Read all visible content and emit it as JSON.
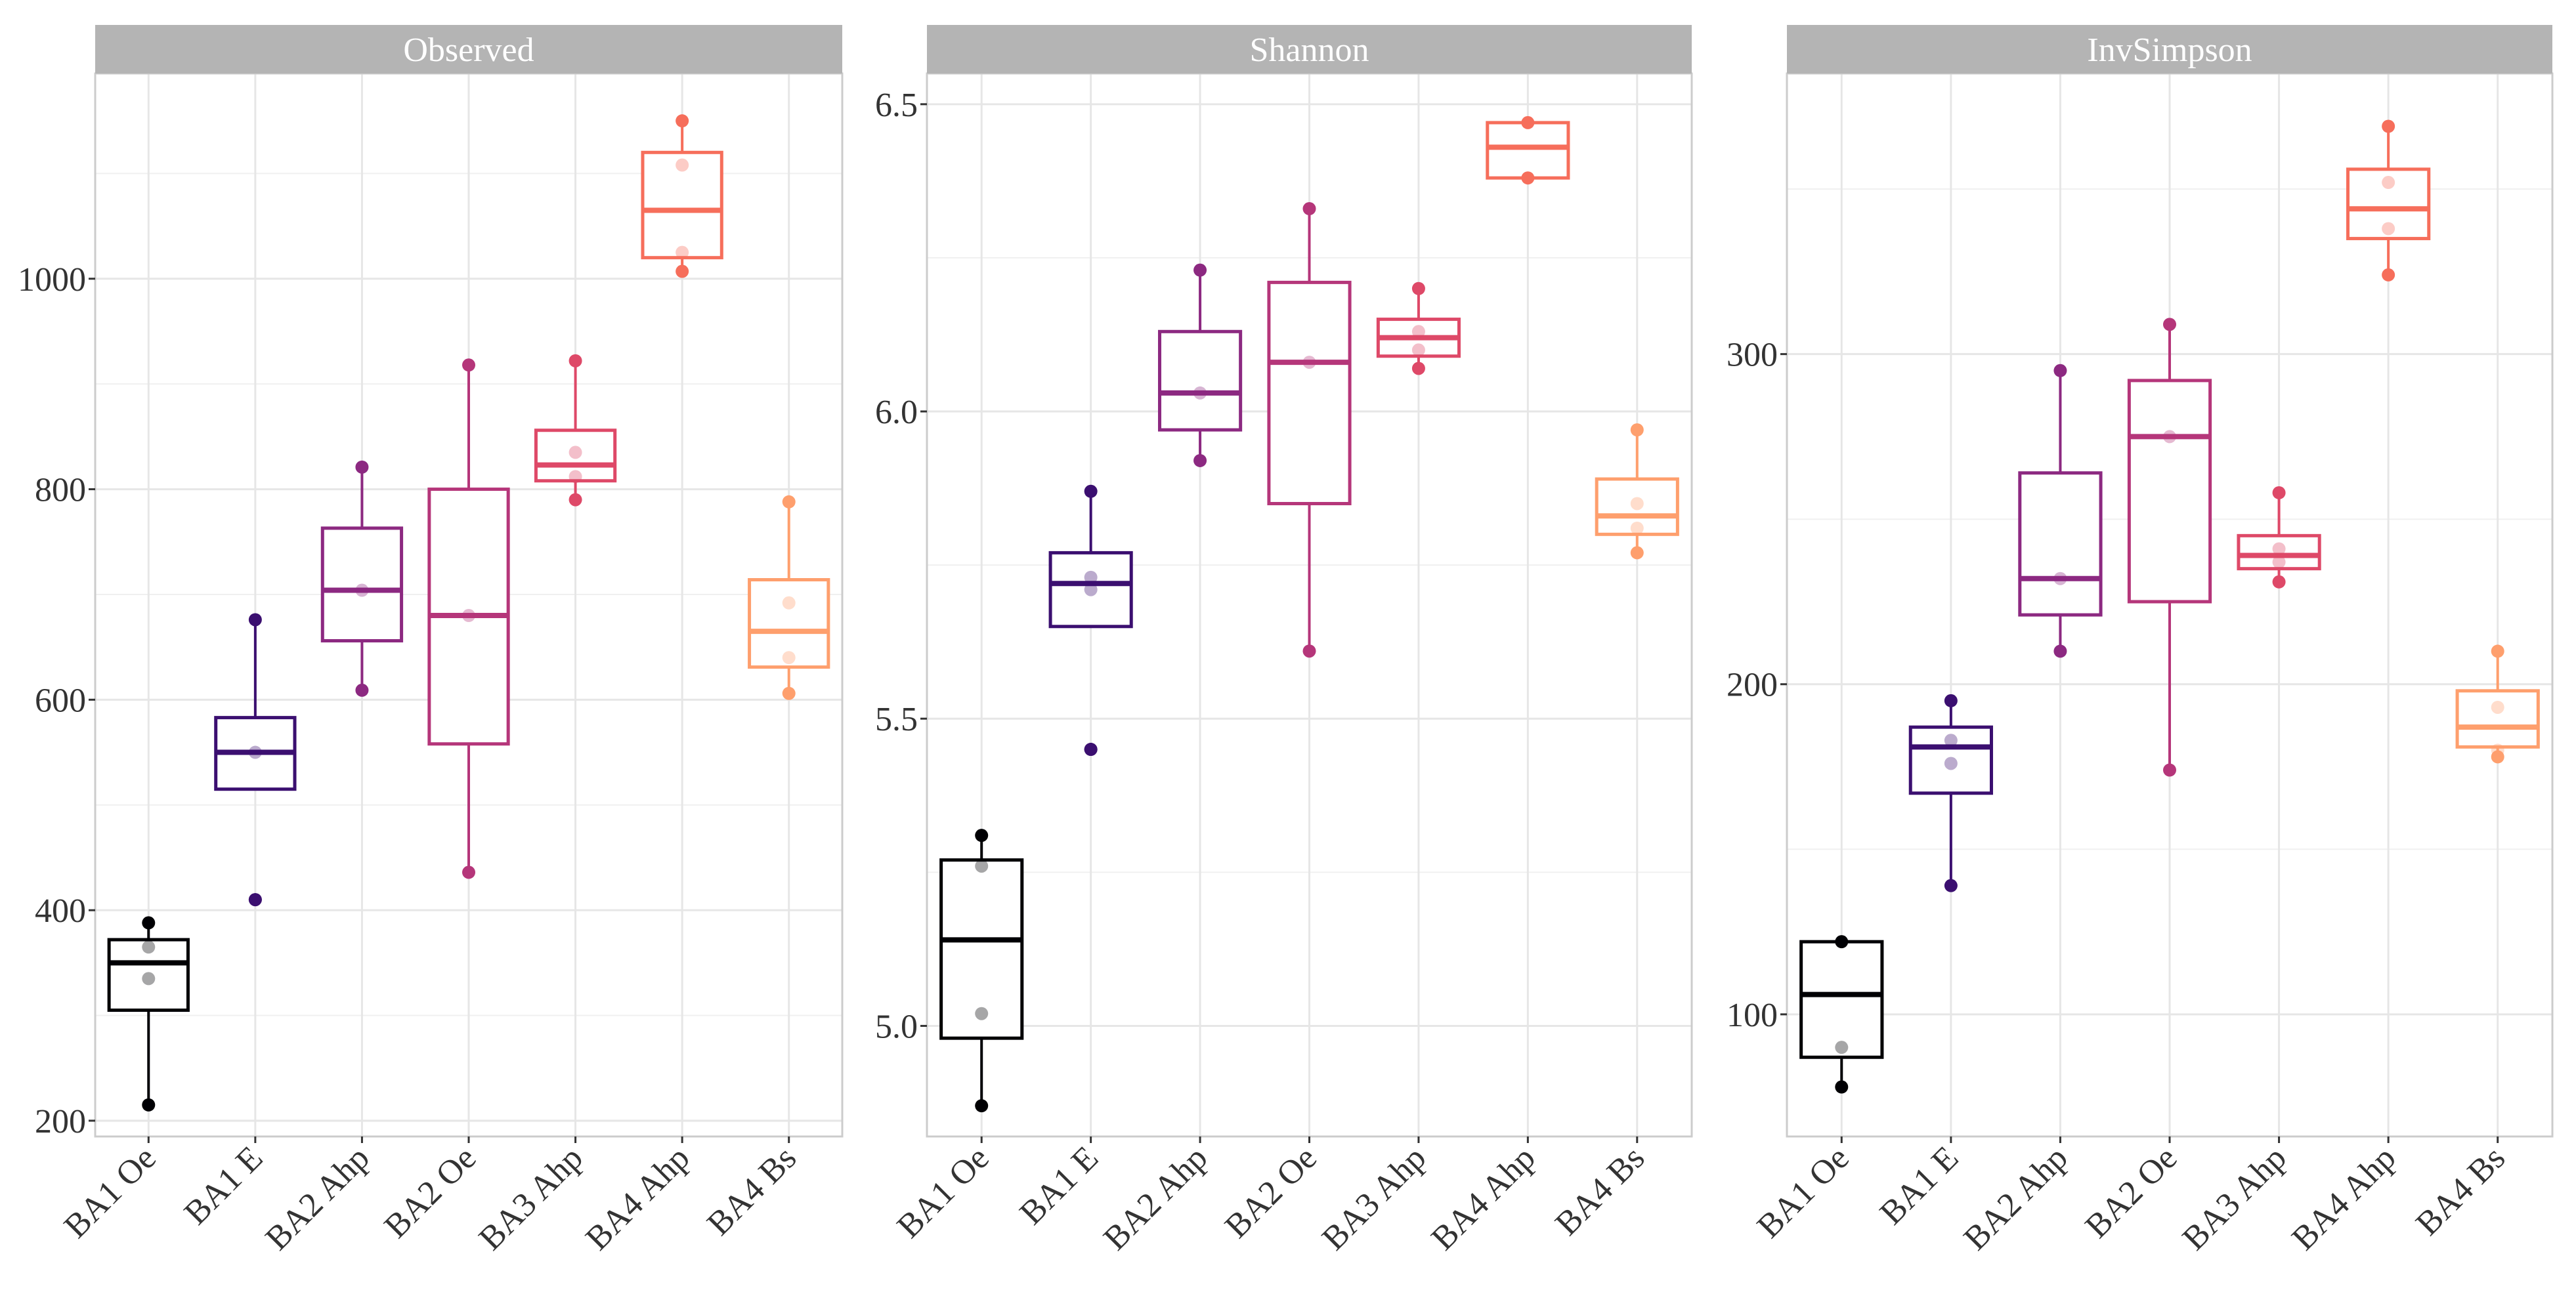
{
  "chart_data": [
    {
      "type": "box",
      "title": "Observed",
      "categories": [
        "BA1 Oe",
        "BA1 E",
        "BA2 Ahp",
        "BA2 Oe",
        "BA3 Ahp",
        "BA4 Ahp",
        "BA4 Bs"
      ],
      "ylim": [
        185,
        1195
      ],
      "yticks": [
        200,
        400,
        600,
        800,
        1000
      ],
      "ytick_labels": [
        "200",
        "400",
        "600",
        "800",
        "1000"
      ],
      "minor_gridlines": [
        300,
        500,
        700,
        900,
        1100
      ],
      "grid": true,
      "boxes": [
        {
          "q1": 305,
          "median": 350,
          "q3": 372,
          "lower_whisker": 215,
          "upper_whisker": 388,
          "points": [
            215,
            335,
            365,
            388
          ]
        },
        {
          "q1": 515,
          "median": 550,
          "q3": 583,
          "lower_whisker": 515,
          "upper_whisker": 676,
          "outliers": [
            410
          ],
          "points": [
            410,
            550,
            676
          ]
        },
        {
          "q1": 656,
          "median": 704,
          "q3": 763,
          "lower_whisker": 609,
          "upper_whisker": 821,
          "points": [
            609,
            704,
            821
          ]
        },
        {
          "q1": 558,
          "median": 680,
          "q3": 800,
          "lower_whisker": 436,
          "upper_whisker": 918,
          "points": [
            436,
            680,
            918
          ]
        },
        {
          "q1": 808,
          "median": 823,
          "q3": 856,
          "lower_whisker": 790,
          "upper_whisker": 922,
          "points": [
            790,
            812,
            835,
            922
          ]
        },
        {
          "q1": 1020,
          "median": 1065,
          "q3": 1120,
          "lower_whisker": 1007,
          "upper_whisker": 1150,
          "points": [
            1007,
            1025,
            1108,
            1150
          ]
        },
        {
          "q1": 631,
          "median": 665,
          "q3": 714,
          "lower_whisker": 606,
          "upper_whisker": 788,
          "points": [
            606,
            640,
            692,
            788
          ]
        }
      ]
    },
    {
      "type": "box",
      "title": "Shannon",
      "categories": [
        "BA1 Oe",
        "BA1 E",
        "BA2 Ahp",
        "BA2 Oe",
        "BA3 Ahp",
        "BA4 Ahp",
        "BA4 Bs"
      ],
      "ylim": [
        4.82,
        6.55
      ],
      "yticks": [
        5.0,
        5.5,
        6.0,
        6.5
      ],
      "ytick_labels": [
        "5.0",
        "5.5",
        "6.0",
        "6.5"
      ],
      "minor_gridlines": [
        5.25,
        5.75,
        6.25
      ],
      "grid": true,
      "boxes": [
        {
          "q1": 4.98,
          "median": 5.14,
          "q3": 5.27,
          "lower_whisker": 4.87,
          "upper_whisker": 5.31,
          "points": [
            4.87,
            5.02,
            5.26,
            5.31
          ]
        },
        {
          "q1": 5.65,
          "median": 5.72,
          "q3": 5.77,
          "lower_whisker": 5.65,
          "upper_whisker": 5.87,
          "outliers": [
            5.45
          ],
          "points": [
            5.45,
            5.71,
            5.73,
            5.87
          ]
        },
        {
          "q1": 5.97,
          "median": 6.03,
          "q3": 6.13,
          "lower_whisker": 5.92,
          "upper_whisker": 6.23,
          "points": [
            5.92,
            6.03,
            6.23
          ]
        },
        {
          "q1": 5.85,
          "median": 6.08,
          "q3": 6.21,
          "lower_whisker": 5.61,
          "upper_whisker": 6.33,
          "points": [
            5.61,
            6.08,
            6.33
          ]
        },
        {
          "q1": 6.09,
          "median": 6.12,
          "q3": 6.15,
          "lower_whisker": 6.07,
          "upper_whisker": 6.2,
          "points": [
            6.07,
            6.1,
            6.13,
            6.2
          ]
        },
        {
          "q1": 6.38,
          "median": 6.43,
          "q3": 6.47,
          "lower_whisker": 6.38,
          "upper_whisker": 6.47,
          "points": [
            6.38,
            6.47
          ]
        },
        {
          "q1": 5.8,
          "median": 5.83,
          "q3": 5.89,
          "lower_whisker": 5.77,
          "upper_whisker": 5.97,
          "points": [
            5.77,
            5.81,
            5.85,
            5.97
          ]
        }
      ]
    },
    {
      "type": "box",
      "title": "InvSimpson",
      "categories": [
        "BA1 Oe",
        "BA1 E",
        "BA2 Ahp",
        "BA2 Oe",
        "BA3 Ahp",
        "BA4 Ahp",
        "BA4 Bs"
      ],
      "ylim": [
        63,
        385
      ],
      "yticks": [
        100,
        200,
        300
      ],
      "ytick_labels": [
        "100",
        "200",
        "300"
      ],
      "minor_gridlines": [
        150,
        250,
        350
      ],
      "grid": true,
      "boxes": [
        {
          "q1": 87,
          "median": 106,
          "q3": 122,
          "lower_whisker": 78,
          "upper_whisker": 122,
          "points": [
            78,
            90,
            122
          ]
        },
        {
          "q1": 167,
          "median": 181,
          "q3": 187,
          "lower_whisker": 139,
          "upper_whisker": 195,
          "points": [
            139,
            176,
            183,
            195
          ]
        },
        {
          "q1": 221,
          "median": 232,
          "q3": 264,
          "lower_whisker": 210,
          "upper_whisker": 295,
          "points": [
            210,
            232,
            295
          ]
        },
        {
          "q1": 225,
          "median": 275,
          "q3": 292,
          "lower_whisker": 174,
          "upper_whisker": 309,
          "points": [
            174,
            275,
            309
          ]
        },
        {
          "q1": 235,
          "median": 239,
          "q3": 245,
          "lower_whisker": 231,
          "upper_whisker": 258,
          "points": [
            231,
            237,
            241,
            258
          ]
        },
        {
          "q1": 335,
          "median": 344,
          "q3": 356,
          "lower_whisker": 324,
          "upper_whisker": 369,
          "points": [
            324,
            338,
            352,
            369
          ]
        },
        {
          "q1": 181,
          "median": 187,
          "q3": 198,
          "lower_whisker": 178,
          "upper_whisker": 210,
          "points": [
            178,
            180,
            193,
            210
          ]
        }
      ]
    }
  ],
  "colors": {
    "series": [
      "#000004",
      "#3b0f70",
      "#8c2981",
      "#b5367a",
      "#de4968",
      "#f66e5b",
      "#fe9f6d"
    ],
    "strip_bg": "#b4b4b4",
    "strip_text": "#ffffff",
    "grid": "#e6e6e6",
    "panel_border": "#cccccc",
    "axis_text": "#333333"
  }
}
